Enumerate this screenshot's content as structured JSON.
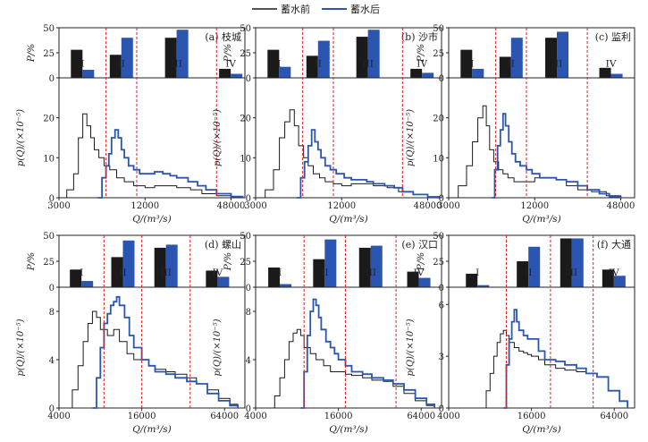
{
  "legend": {
    "before": "蓄水前",
    "after": "蓄水后"
  },
  "colors": {
    "before": "#1a1a1a",
    "after": "#2a55b0",
    "threshold": "#e02020"
  },
  "common": {
    "bar_ylabel": "P/%",
    "bar_yticks": [
      "0",
      "25",
      "50"
    ],
    "bar_categories": [
      "I",
      "II",
      "III",
      "IV"
    ],
    "hist_xlabel": "Q/(m³/s)",
    "hist_ylabel_top": "p(Q)/(×10⁻⁵)",
    "hist_ylabel_bottom": "p(Q)/(×10⁻⁵)"
  },
  "chart_data": [
    {
      "panel": "(a) 枝城",
      "bar": {
        "type": "bar",
        "categories": [
          "I",
          "II",
          "III",
          "IV"
        ],
        "ylim": [
          0,
          50
        ],
        "series": [
          {
            "name": "蓄水前",
            "values": [
              28,
              23,
              40,
              9
            ]
          },
          {
            "name": "蓄水后",
            "values": [
              8,
              40,
              48,
              4
            ]
          }
        ]
      },
      "hist": {
        "type": "line",
        "xscale": "log",
        "xlim": [
          3000,
          60000
        ],
        "ylim": [
          0,
          30
        ],
        "xticks": [
          "3000",
          "12000",
          "48000"
        ],
        "yticks": [
          "0",
          "10",
          "20"
        ],
        "thresholds": [
          6400,
          10500,
          38000
        ],
        "before": {
          "x": [
            3000,
            3400,
            3800,
            4100,
            4400,
            4700,
            5000,
            5300,
            5700,
            6200,
            6800,
            7600,
            8600,
            10000,
            12000,
            14000,
            17000,
            20000,
            25000,
            30000,
            38000,
            48000,
            58000
          ],
          "y": [
            0,
            2,
            6,
            15,
            21,
            18,
            15,
            12,
            10,
            8,
            7,
            5,
            4,
            3,
            2.5,
            3,
            3,
            2.5,
            2,
            1,
            0.5,
            0.2,
            0
          ]
        },
        "after": {
          "x": [
            5600,
            6000,
            6400,
            6700,
            7000,
            7400,
            7800,
            8200,
            8600,
            9200,
            10000,
            11000,
            12500,
            14000,
            16000,
            18000,
            20000,
            24000,
            28000,
            32000,
            38000,
            48000,
            58000
          ],
          "y": [
            0,
            5,
            8,
            11,
            15,
            17,
            15,
            12,
            10,
            8,
            7,
            6,
            6,
            6.5,
            6,
            5.5,
            5,
            4,
            3,
            2,
            1,
            0.3,
            0
          ]
        }
      }
    },
    {
      "panel": "(b) 沙市",
      "bar": {
        "type": "bar",
        "categories": [
          "I",
          "II",
          "III",
          "IV"
        ],
        "ylim": [
          0,
          50
        ],
        "series": [
          {
            "name": "蓄水前",
            "values": [
              28,
              22,
              41,
              9
            ]
          },
          {
            "name": "蓄水后",
            "values": [
              11,
              37,
              48,
              5
            ]
          }
        ]
      },
      "hist": {
        "type": "line",
        "xscale": "log",
        "xlim": [
          3000,
          60000
        ],
        "ylim": [
          0,
          30
        ],
        "xticks": [
          "3000",
          "12000",
          "48000"
        ],
        "yticks": [
          "0",
          "10",
          "20"
        ],
        "thresholds": [
          6400,
          10500,
          32000
        ],
        "before": {
          "x": [
            3000,
            3500,
            4000,
            4400,
            4800,
            5200,
            5600,
            6000,
            6500,
            7000,
            7600,
            8400,
            9200,
            10500,
            12000,
            14000,
            17000,
            20000,
            25000,
            30000,
            38000,
            48000,
            58000
          ],
          "y": [
            0,
            2,
            7,
            15,
            19,
            22,
            18,
            13,
            10,
            8,
            6,
            5,
            4,
            3.5,
            3,
            3.5,
            3.5,
            3,
            2.5,
            1.5,
            0.8,
            0.3,
            0
          ]
        },
        "after": {
          "x": [
            5800,
            6200,
            6600,
            7000,
            7400,
            7800,
            8200,
            8600,
            9200,
            10000,
            11000,
            12500,
            14000,
            16000,
            18000,
            20000,
            24000,
            28000,
            32000,
            38000,
            48000,
            58000
          ],
          "y": [
            0,
            5,
            9,
            13,
            17,
            14,
            12,
            10,
            8,
            7,
            6,
            5,
            4.5,
            4.5,
            4,
            3.5,
            3,
            2.5,
            1.5,
            0.8,
            0.2,
            0
          ]
        }
      }
    },
    {
      "panel": "(c) 监利",
      "bar": {
        "type": "bar",
        "categories": [
          "I",
          "II",
          "III",
          "IV"
        ],
        "ylim": [
          0,
          50
        ],
        "series": [
          {
            "name": "蓄水前",
            "values": [
              28,
              21,
              40,
              10
            ]
          },
          {
            "name": "蓄水后",
            "values": [
              9,
              40,
              46,
              4
            ]
          }
        ]
      },
      "hist": {
        "type": "line",
        "xscale": "log",
        "xlim": [
          3000,
          60000
        ],
        "ylim": [
          0,
          30
        ],
        "xticks": [
          "3000",
          "12000",
          "48000"
        ],
        "yticks": [
          "0",
          "10",
          "20"
        ],
        "thresholds": [
          6400,
          10500,
          28000
        ],
        "before": {
          "x": [
            3000,
            3500,
            4000,
            4400,
            4800,
            5200,
            5500,
            5800,
            6200,
            6700,
            7200,
            7800,
            8600,
            9500,
            10500,
            12000,
            14000,
            17000,
            20000,
            24000,
            30000,
            38000,
            48000
          ],
          "y": [
            0,
            3,
            8,
            14,
            20,
            23,
            18,
            12,
            9,
            7,
            6,
            5,
            4,
            4,
            4,
            5,
            5,
            4.5,
            3,
            2,
            1.5,
            0.5,
            0
          ]
        },
        "after": {
          "x": [
            6000,
            6300,
            6600,
            6900,
            7200,
            7500,
            7900,
            8300,
            8800,
            9500,
            10500,
            11500,
            13000,
            15000,
            17000,
            20000,
            24000,
            28000,
            34000,
            40000,
            48000
          ],
          "y": [
            0,
            7,
            13,
            17,
            21,
            18,
            14,
            11,
            9,
            8,
            7,
            6,
            5,
            5,
            4.5,
            4,
            3,
            2,
            1,
            0.3,
            0
          ]
        }
      }
    },
    {
      "panel": "(d) 螺山",
      "bar": {
        "type": "bar",
        "categories": [
          "I",
          "II",
          "III",
          "IV"
        ],
        "ylim": [
          0,
          50
        ],
        "series": [
          {
            "name": "蓄水前",
            "values": [
              17,
              29,
              38,
              16
            ]
          },
          {
            "name": "蓄水后",
            "values": [
              6,
              45,
              41,
              10
            ]
          }
        ]
      },
      "hist": {
        "type": "line",
        "xscale": "log",
        "xlim": [
          4000,
          90000
        ],
        "ylim": [
          0,
          10
        ],
        "xticks": [
          "4000",
          "16000",
          "64000"
        ],
        "yticks": [
          "0",
          "4",
          "8"
        ],
        "thresholds": [
          8500,
          16000,
          36000
        ],
        "before": {
          "x": [
            4500,
            5000,
            5500,
            6000,
            6500,
            7000,
            7500,
            8000,
            9000,
            10000,
            11000,
            12500,
            14000,
            16000,
            18000,
            20000,
            24000,
            28000,
            34000,
            40000,
            48000,
            58000,
            70000,
            80000
          ],
          "y": [
            0,
            1.5,
            3.5,
            5.5,
            7,
            8,
            7.5,
            6.5,
            6,
            6.5,
            5.5,
            4.5,
            4,
            4,
            3.5,
            3.2,
            3,
            2.8,
            2.5,
            2,
            1.5,
            0.8,
            0.3,
            0
          ]
        },
        "after": {
          "x": [
            7000,
            7500,
            8000,
            8500,
            9000,
            9500,
            10000,
            10500,
            11000,
            12000,
            13000,
            14000,
            16000,
            18000,
            20000,
            24000,
            28000,
            34000,
            40000,
            48000,
            58000,
            70000,
            80000
          ],
          "y": [
            0,
            2.5,
            5,
            7,
            7.8,
            8.5,
            8.8,
            9.2,
            8.5,
            7.5,
            6,
            5,
            4,
            3.5,
            3,
            2.8,
            2.5,
            2.2,
            2,
            1.2,
            0.6,
            0.2,
            0
          ]
        }
      }
    },
    {
      "panel": "(e) 汉口",
      "bar": {
        "type": "bar",
        "categories": [
          "I",
          "II",
          "III",
          "IV"
        ],
        "ylim": [
          0,
          50
        ],
        "series": [
          {
            "name": "蓄水前",
            "values": [
              19,
              27,
              38,
              15
            ]
          },
          {
            "name": "蓄水后",
            "values": [
              3,
              46,
              40,
              9
            ]
          }
        ]
      },
      "hist": {
        "type": "line",
        "xscale": "log",
        "xlim": [
          4000,
          90000
        ],
        "ylim": [
          0,
          10
        ],
        "xticks": [
          "4000",
          "16000",
          "64000"
        ],
        "yticks": [
          "0",
          "4",
          "8"
        ],
        "thresholds": [
          9000,
          18000,
          42000
        ],
        "before": {
          "x": [
            5000,
            5500,
            6000,
            6500,
            7000,
            7500,
            8000,
            8500,
            9000,
            10000,
            11000,
            12500,
            14000,
            16000,
            18000,
            20000,
            24000,
            28000,
            34000,
            40000,
            48000,
            58000,
            70000,
            80000
          ],
          "y": [
            0,
            1,
            2.5,
            4,
            5.5,
            6.2,
            6.5,
            6,
            5,
            4.5,
            4,
            3.5,
            3,
            3,
            2.8,
            2.7,
            2.5,
            2.3,
            2.2,
            1.8,
            1.2,
            0.6,
            0.2,
            0
          ]
        },
        "after": {
          "x": [
            8500,
            9000,
            9500,
            10000,
            10500,
            11000,
            11500,
            12000,
            13000,
            14000,
            15000,
            16000,
            18000,
            20000,
            24000,
            28000,
            34000,
            40000,
            48000,
            58000,
            70000,
            80000
          ],
          "y": [
            0,
            3,
            6,
            8,
            9,
            8.5,
            7.5,
            6.5,
            5.5,
            5,
            4.5,
            4,
            3.5,
            3,
            2.8,
            2.5,
            2.3,
            2,
            1.5,
            0.8,
            0.3,
            0
          ]
        }
      }
    },
    {
      "panel": "(f) 大通",
      "bar": {
        "type": "bar",
        "categories": [
          "I",
          "II",
          "III",
          "IV"
        ],
        "ylim": [
          0,
          50
        ],
        "series": [
          {
            "name": "蓄水前",
            "values": [
              13,
              25,
              47,
              17
            ]
          },
          {
            "name": "蓄水后",
            "values": [
              2,
              39,
              47,
              11
            ]
          }
        ]
      },
      "hist": {
        "type": "line",
        "xscale": "log",
        "xlim": [
          4000,
          90000
        ],
        "ylim": [
          0,
          7
        ],
        "xticks": [
          "4000",
          "16000",
          "64000"
        ],
        "yticks": [
          "0",
          "3",
          "6"
        ],
        "thresholds": [
          10500,
          22000,
          45000
        ],
        "before": {
          "x": [
            7000,
            7500,
            8000,
            8500,
            9000,
            9500,
            10000,
            10500,
            11000,
            12000,
            13000,
            14000,
            15000,
            16000,
            18000,
            20000,
            24000,
            28000,
            34000,
            40000,
            48000,
            58000,
            70000,
            80000
          ],
          "y": [
            0,
            1,
            2,
            3,
            3.8,
            4.3,
            4.5,
            4.2,
            3.8,
            3.5,
            3.3,
            3.2,
            3.1,
            3,
            2.8,
            2.5,
            2.3,
            2.2,
            2.1,
            2,
            1.8,
            1,
            0.4,
            0
          ]
        },
        "after": {
          "x": [
            10000,
            10500,
            11000,
            11500,
            12000,
            12500,
            13000,
            14000,
            15000,
            16000,
            18000,
            20000,
            24000,
            28000,
            34000,
            40000,
            48000,
            58000,
            70000,
            80000
          ],
          "y": [
            0,
            2.5,
            4,
            5,
            5.7,
            5,
            4.5,
            4.2,
            4,
            4,
            3.3,
            2.8,
            2.7,
            2.5,
            2.3,
            2,
            1.8,
            1,
            0.4,
            0
          ]
        }
      }
    }
  ]
}
